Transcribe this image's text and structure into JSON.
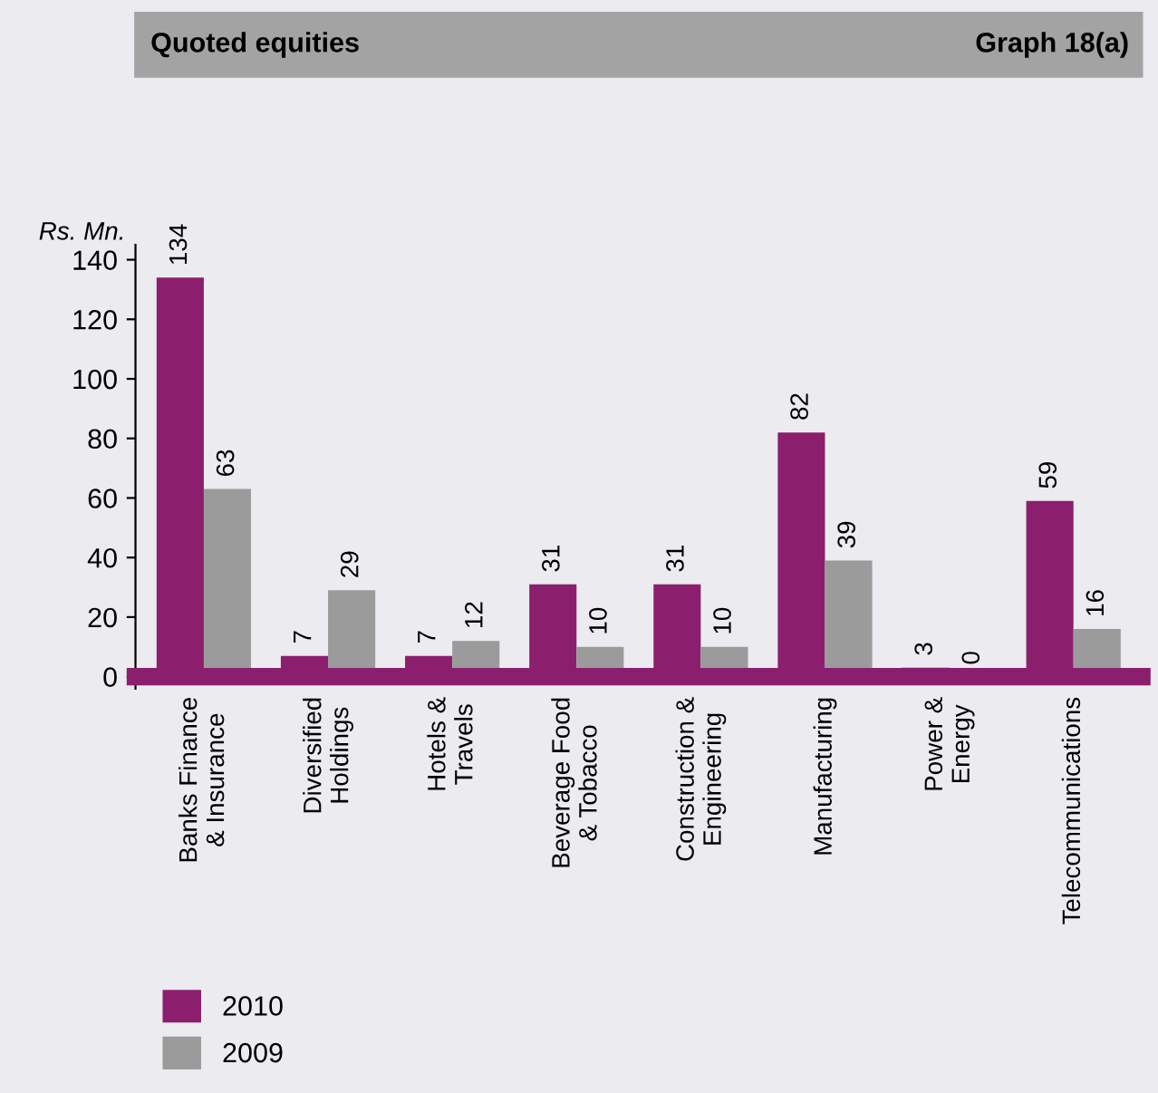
{
  "chart_data": {
    "type": "bar",
    "title": "Quoted equities",
    "ylabel": "Rs. Mn.",
    "annotations": [
      "Graph 18(a)"
    ],
    "categories": [
      "Banks Finance\n& Insurance",
      "Diversified\nHoldings",
      "Hotels &\nTravels",
      "Beverage Food\n& Tobacco",
      "Construction &\nEngineering",
      "Manufacturing",
      "Power &\nEnergy",
      "Telecommunications"
    ],
    "series": [
      {
        "name": "2010",
        "color": "#8b1f6e",
        "values": [
          134,
          7,
          7,
          31,
          31,
          82,
          3,
          59
        ]
      },
      {
        "name": "2009",
        "color": "#9b9b9b",
        "values": [
          63,
          29,
          12,
          10,
          10,
          39,
          0,
          16
        ]
      }
    ],
    "ylim": [
      -4,
      145
    ],
    "yticks": [
      0,
      20,
      40,
      60,
      80,
      100,
      120,
      140
    ],
    "data_labels": true,
    "legend": "bottom left",
    "grid": false
  }
}
